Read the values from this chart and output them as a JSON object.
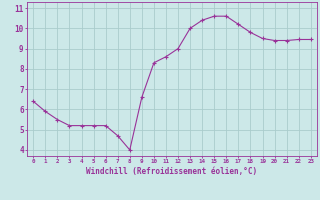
{
  "x": [
    0,
    1,
    2,
    3,
    4,
    5,
    6,
    7,
    8,
    9,
    10,
    11,
    12,
    13,
    14,
    15,
    16,
    17,
    18,
    19,
    20,
    21,
    22,
    23
  ],
  "y": [
    6.4,
    5.9,
    5.5,
    5.2,
    5.2,
    5.2,
    5.2,
    4.7,
    4.0,
    6.6,
    8.3,
    8.6,
    9.0,
    10.0,
    10.4,
    10.6,
    10.6,
    10.2,
    9.8,
    9.5,
    9.4,
    9.4,
    9.45,
    9.45
  ],
  "line_color": "#993399",
  "marker": "+",
  "marker_size": 3,
  "bg_color": "#cce8e8",
  "grid_color": "#aacccc",
  "xlabel": "Windchill (Refroidissement éolien,°C)",
  "ylabel_ticks": [
    4,
    5,
    6,
    7,
    8,
    9,
    10,
    11
  ],
  "xlim": [
    -0.5,
    23.5
  ],
  "ylim": [
    3.7,
    11.3
  ],
  "tick_color": "#993399",
  "label_color": "#993399",
  "font_name": "monospace"
}
